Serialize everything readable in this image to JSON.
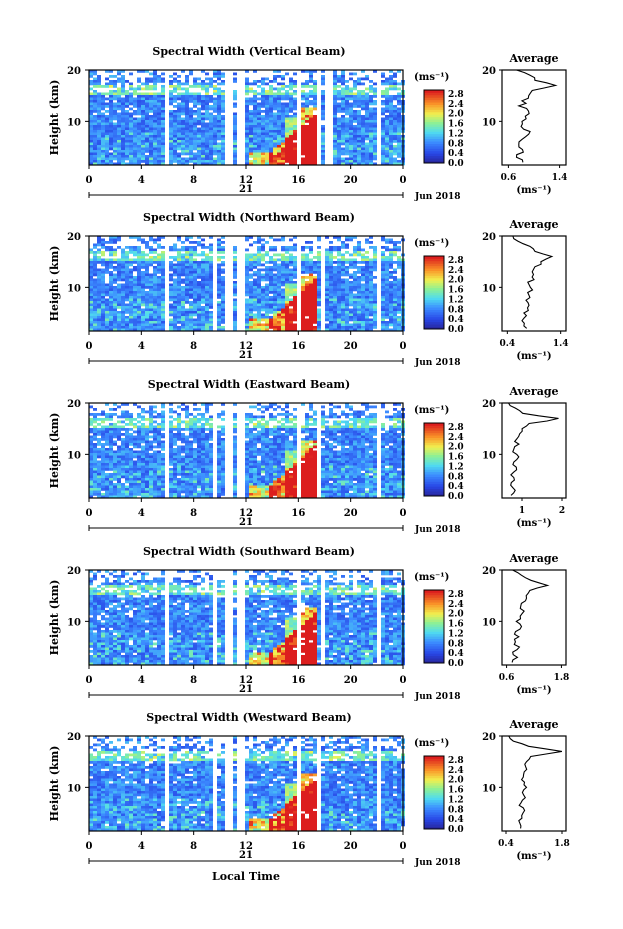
{
  "figure": {
    "x_axis_title": "Local Time",
    "y_axis_title": "Height (km)",
    "date_label": "Jun 2018",
    "day_label": "21",
    "colorbar_unit": "(ms⁻¹)",
    "colorbar_ticks": [
      "0.0",
      "0.4",
      "0.8",
      "1.2",
      "1.6",
      "2.0",
      "2.4",
      "2.8"
    ],
    "x_ticks": [
      "0",
      "4",
      "8",
      "12",
      "16",
      "20",
      "0"
    ],
    "y_ticks": [
      "10",
      "20"
    ],
    "avg_panel_title": "Average",
    "avg_unit": "(ms⁻¹)"
  },
  "chart_data": [
    {
      "type": "heatmap",
      "title": "Spectral Width (Vertical Beam)",
      "xlabel": "",
      "ylabel": "Height (km)",
      "x_range_hours": [
        0,
        24
      ],
      "y_range_km": [
        1.5,
        20
      ],
      "color_range": [
        0.0,
        3.0
      ],
      "data_gaps_hours": [
        [
          5.7,
          6.1
        ],
        [
          10.1,
          10.8
        ],
        [
          11.3,
          11.7
        ],
        [
          15.7,
          16.1
        ],
        [
          17.2,
          17.5
        ],
        [
          18.0,
          18.6
        ],
        [
          21.8,
          22.2
        ]
      ],
      "profile": {
        "title": "Average",
        "xlabel": "(ms⁻¹)",
        "x_ticks": [
          "0.6",
          "1.4"
        ],
        "xlim": [
          0.5,
          1.5
        ],
        "heights_km": [
          2,
          3,
          4,
          5,
          6,
          7,
          8,
          9,
          10,
          11,
          12,
          13,
          14,
          15,
          16,
          17,
          18,
          19,
          20
        ],
        "values": [
          0.8,
          0.75,
          0.8,
          0.75,
          0.8,
          0.85,
          0.9,
          0.8,
          0.8,
          0.85,
          0.9,
          0.8,
          0.85,
          0.9,
          1.0,
          1.3,
          1.05,
          0.95,
          0.7
        ]
      }
    },
    {
      "type": "heatmap",
      "title": "Spectral Width (Northward Beam)",
      "xlabel": "",
      "ylabel": "Height (km)",
      "x_range_hours": [
        0,
        24
      ],
      "y_range_km": [
        1.5,
        20
      ],
      "color_range": [
        0.0,
        3.0
      ],
      "data_gaps_hours": [
        [
          5.7,
          6.1
        ],
        [
          9.3,
          9.6
        ],
        [
          10.1,
          10.8
        ],
        [
          11.3,
          11.7
        ],
        [
          15.7,
          16.1
        ],
        [
          17.5,
          18.0
        ],
        [
          21.8,
          22.2
        ]
      ],
      "profile": {
        "title": "Average",
        "xlabel": "(ms⁻¹)",
        "x_ticks": [
          "0.4",
          "1.4"
        ],
        "xlim": [
          0.3,
          1.5
        ],
        "heights_km": [
          2,
          3,
          4,
          5,
          6,
          7,
          8,
          9,
          10,
          11,
          12,
          13,
          14,
          15,
          16,
          17,
          18,
          19,
          20
        ],
        "values": [
          0.75,
          0.7,
          0.75,
          0.7,
          0.8,
          0.75,
          0.85,
          0.8,
          0.85,
          0.8,
          0.9,
          0.85,
          0.95,
          1.0,
          1.2,
          0.9,
          0.8,
          0.6,
          0.5
        ]
      }
    },
    {
      "type": "heatmap",
      "title": "Spectral Width (Eastward Beam)",
      "xlabel": "",
      "ylabel": "Height (km)",
      "x_range_hours": [
        0,
        24
      ],
      "y_range_km": [
        1.5,
        20
      ],
      "color_range": [
        0.0,
        3.0
      ],
      "data_gaps_hours": [
        [
          5.7,
          6.1
        ],
        [
          9.3,
          9.6
        ],
        [
          10.1,
          10.8
        ],
        [
          11.3,
          11.7
        ],
        [
          15.7,
          16.1
        ],
        [
          17.2,
          17.5
        ],
        [
          21.8,
          22.2
        ]
      ],
      "profile": {
        "title": "Average",
        "xlabel": "(ms⁻¹)",
        "x_ticks": [
          "1",
          "2"
        ],
        "xlim": [
          0.5,
          2.1
        ],
        "heights_km": [
          2,
          3,
          4,
          5,
          6,
          7,
          8,
          9,
          10,
          11,
          12,
          13,
          14,
          15,
          16,
          17,
          18,
          19,
          20
        ],
        "values": [
          0.75,
          0.8,
          0.7,
          0.8,
          0.75,
          0.85,
          0.8,
          0.9,
          0.85,
          0.8,
          0.9,
          0.85,
          0.95,
          1.0,
          1.2,
          1.95,
          1.0,
          0.8,
          0.7
        ]
      }
    },
    {
      "type": "heatmap",
      "title": "Spectral Width (Southward Beam)",
      "xlabel": "",
      "ylabel": "Height (km)",
      "x_range_hours": [
        0,
        24
      ],
      "y_range_km": [
        1.5,
        20
      ],
      "color_range": [
        0.0,
        3.0
      ],
      "data_gaps_hours": [
        [
          5.7,
          6.1
        ],
        [
          9.3,
          9.6
        ],
        [
          10.1,
          10.8
        ],
        [
          11.3,
          11.7
        ],
        [
          15.7,
          16.1
        ],
        [
          17.5,
          18.0
        ],
        [
          21.8,
          22.2
        ]
      ],
      "profile": {
        "title": "Average",
        "xlabel": "(ms⁻¹)",
        "x_ticks": [
          "0.6",
          "1.8"
        ],
        "xlim": [
          0.5,
          1.9
        ],
        "heights_km": [
          2,
          3,
          4,
          5,
          6,
          7,
          8,
          9,
          10,
          11,
          12,
          13,
          14,
          15,
          16,
          17,
          18,
          19,
          20
        ],
        "values": [
          0.75,
          0.8,
          0.75,
          0.85,
          0.8,
          0.85,
          0.8,
          0.9,
          0.85,
          0.9,
          0.95,
          0.9,
          1.0,
          1.05,
          1.1,
          1.5,
          1.1,
          0.9,
          0.75
        ]
      }
    },
    {
      "type": "heatmap",
      "title": "Spectral Width (Westward Beam)",
      "xlabel": "Local Time",
      "ylabel": "Height (km)",
      "x_range_hours": [
        0,
        24
      ],
      "y_range_km": [
        1.5,
        20
      ],
      "color_range": [
        0.0,
        3.0
      ],
      "data_gaps_hours": [
        [
          5.7,
          6.1
        ],
        [
          9.3,
          9.6
        ],
        [
          10.1,
          10.8
        ],
        [
          11.3,
          11.7
        ],
        [
          15.7,
          16.1
        ],
        [
          17.2,
          17.5
        ],
        [
          21.8,
          22.2
        ]
      ],
      "profile": {
        "title": "Average",
        "xlabel": "(ms⁻¹)",
        "x_ticks": [
          "0.4",
          "1.8"
        ],
        "xlim": [
          0.3,
          1.9
        ],
        "heights_km": [
          2,
          3,
          4,
          5,
          6,
          7,
          8,
          9,
          10,
          11,
          12,
          13,
          14,
          15,
          16,
          17,
          18,
          19,
          20
        ],
        "values": [
          0.8,
          0.75,
          0.8,
          0.85,
          0.8,
          0.75,
          0.85,
          0.8,
          0.9,
          0.85,
          0.8,
          0.85,
          0.9,
          0.95,
          1.0,
          1.8,
          1.0,
          0.6,
          0.5
        ]
      }
    }
  ]
}
